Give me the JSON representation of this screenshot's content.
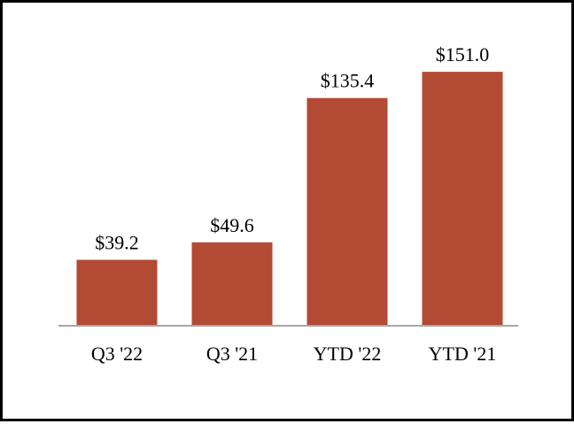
{
  "chart_data": {
    "type": "bar",
    "categories": [
      "Q3 '22",
      "Q3 '21",
      "YTD '22",
      "YTD '21"
    ],
    "values": [
      39.2,
      49.6,
      135.4,
      151.0
    ],
    "data_labels": [
      "$39.2",
      "$49.6",
      "$135.4",
      "$151.0"
    ],
    "ylim": [
      0,
      170
    ],
    "grid": false,
    "legend": "none",
    "bar_color": "#B34A33",
    "axis_color": "#A6A6A6"
  }
}
